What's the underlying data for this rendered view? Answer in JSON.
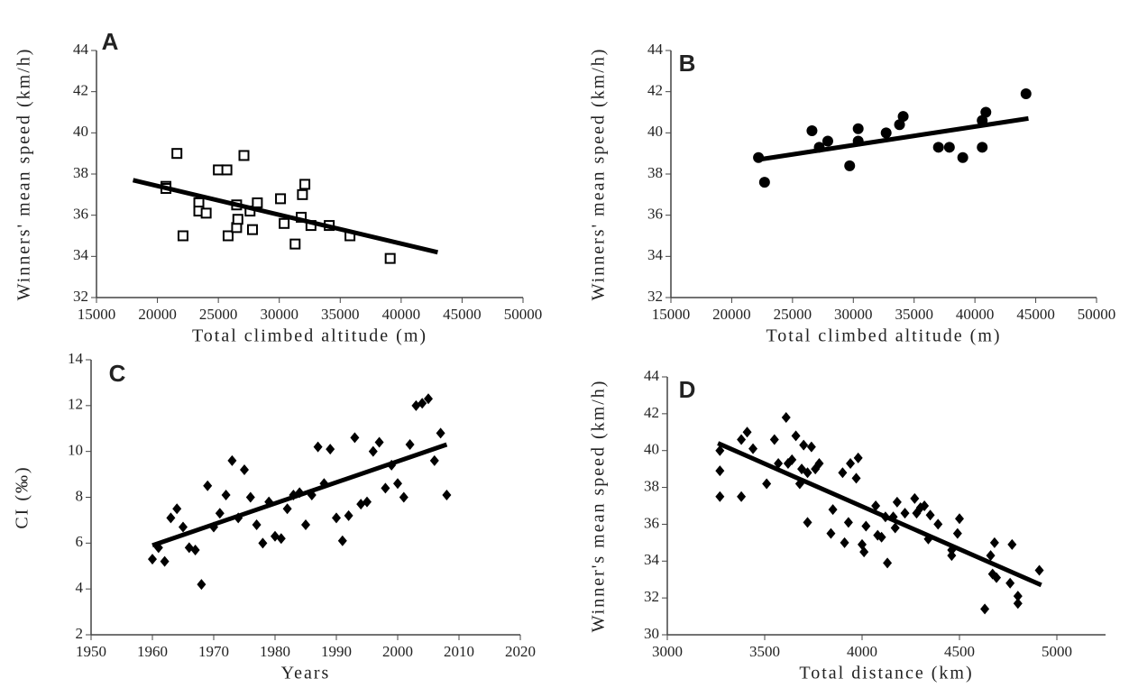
{
  "chart_data": [
    {
      "type": "scatter",
      "title": "A",
      "x_label": "Total climbed altitude (m)",
      "y_label": "Winners' mean speed (km/h)",
      "marker": "square-open",
      "color": "#000000",
      "xlim": [
        15000,
        50000
      ],
      "xticks": [
        15000,
        20000,
        25000,
        30000,
        35000,
        40000,
        45000,
        50000
      ],
      "ylim": [
        32,
        44
      ],
      "yticks": [
        32,
        34,
        36,
        38,
        40,
        42,
        44
      ],
      "x": [
        20700,
        20700,
        21600,
        22100,
        23400,
        23400,
        24000,
        25000,
        25700,
        25800,
        26500,
        26500,
        26600,
        27100,
        27600,
        27800,
        28200,
        30100,
        30400,
        31300,
        31800,
        31900,
        32100,
        32600,
        34100,
        35800,
        39100
      ],
      "values": [
        37.4,
        37.3,
        39.0,
        35.0,
        36.6,
        36.2,
        36.1,
        38.2,
        38.2,
        35.0,
        36.5,
        35.4,
        35.8,
        38.9,
        36.2,
        35.3,
        36.6,
        36.8,
        35.6,
        34.6,
        35.9,
        37.0,
        37.5,
        35.5,
        35.5,
        35.0,
        33.9
      ],
      "trend": {
        "x": [
          18000,
          43000
        ],
        "values": [
          37.7,
          34.2
        ]
      }
    },
    {
      "type": "scatter",
      "title": "B",
      "x_label": "Total climbed altitude (m)",
      "y_label": "Winners' mean speed (km/h)",
      "marker": "circle",
      "color": "#000000",
      "xlim": [
        15000,
        50000
      ],
      "xticks": [
        15000,
        20000,
        25000,
        30000,
        35000,
        40000,
        45000,
        50000
      ],
      "ylim": [
        32,
        44
      ],
      "yticks": [
        32,
        34,
        36,
        38,
        40,
        42,
        44
      ],
      "x": [
        22200,
        22700,
        26600,
        27200,
        27900,
        29700,
        30400,
        30400,
        32700,
        33800,
        34100,
        37000,
        37900,
        39000,
        40600,
        40600,
        40900,
        44200
      ],
      "values": [
        38.8,
        37.6,
        40.1,
        39.3,
        39.6,
        38.4,
        39.6,
        40.2,
        40.0,
        40.4,
        40.8,
        39.3,
        39.3,
        38.8,
        39.3,
        40.6,
        41.0,
        41.9
      ],
      "trend": {
        "x": [
          22200,
          44400
        ],
        "values": [
          38.7,
          40.7
        ]
      }
    },
    {
      "type": "scatter",
      "title": "C",
      "x_label": "Years",
      "y_label": "CI (‰)",
      "marker": "diamond",
      "color": "#000000",
      "xlim": [
        1950,
        2020
      ],
      "xticks": [
        1950,
        1960,
        1970,
        1980,
        1990,
        2000,
        2010,
        2020
      ],
      "ylim": [
        2,
        14
      ],
      "yticks": [
        2,
        4,
        6,
        8,
        10,
        12,
        14
      ],
      "x": [
        1960,
        1961,
        1962,
        1963,
        1964,
        1965,
        1966,
        1967,
        1968,
        1969,
        1970,
        1971,
        1972,
        1973,
        1974,
        1975,
        1976,
        1977,
        1978,
        1979,
        1980,
        1981,
        1982,
        1983,
        1984,
        1985,
        1986,
        1987,
        1988,
        1989,
        1990,
        1991,
        1992,
        1993,
        1994,
        1995,
        1996,
        1997,
        1998,
        1999,
        2000,
        2001,
        2002,
        2003,
        2004,
        2005,
        2006,
        2007,
        2008
      ],
      "values": [
        5.3,
        5.8,
        5.2,
        7.1,
        7.5,
        6.7,
        5.8,
        5.7,
        4.2,
        8.5,
        6.7,
        7.3,
        8.1,
        9.6,
        7.1,
        9.2,
        8.0,
        6.8,
        6.0,
        7.8,
        6.3,
        6.2,
        7.5,
        8.1,
        8.2,
        6.8,
        8.1,
        10.2,
        8.6,
        10.1,
        7.1,
        6.1,
        7.2,
        10.6,
        7.7,
        7.8,
        10.0,
        10.4,
        8.4,
        9.4,
        8.6,
        8.0,
        10.3,
        12.0,
        12.1,
        12.3,
        9.6,
        10.8,
        8.1
      ],
      "trend": {
        "x": [
          1960,
          2008
        ],
        "values": [
          5.9,
          10.3
        ]
      }
    },
    {
      "type": "scatter",
      "title": "D",
      "x_label": "Total distance (km)",
      "y_label": "Winner's mean speed (km/h)",
      "marker": "diamond",
      "color": "#000000",
      "xlim": [
        3000,
        5250
      ],
      "xticks": [
        3000,
        3500,
        4000,
        4500,
        5000
      ],
      "ylim": [
        30,
        44
      ],
      "yticks": [
        30,
        32,
        34,
        36,
        38,
        40,
        42,
        44
      ],
      "x": [
        3270,
        3270,
        3270,
        3380,
        3380,
        3410,
        3440,
        3510,
        3550,
        3570,
        3610,
        3620,
        3640,
        3660,
        3680,
        3690,
        3700,
        3720,
        3720,
        3740,
        3760,
        3780,
        3840,
        3850,
        3900,
        3910,
        3930,
        3940,
        3970,
        3980,
        4000,
        4010,
        4020,
        4070,
        4080,
        4100,
        4120,
        4130,
        4160,
        4170,
        4180,
        4220,
        4270,
        4280,
        4300,
        4320,
        4340,
        4350,
        4390,
        4460,
        4460,
        4490,
        4500,
        4630,
        4660,
        4670,
        4680,
        4690,
        4760,
        4770,
        4800,
        4800,
        4910
      ],
      "values": [
        40.0,
        38.9,
        37.5,
        40.6,
        37.5,
        41.0,
        40.1,
        38.2,
        40.6,
        39.3,
        41.8,
        39.3,
        39.5,
        40.8,
        38.2,
        39.0,
        40.3,
        36.1,
        38.8,
        40.2,
        39.0,
        39.3,
        35.5,
        36.8,
        38.8,
        35.0,
        36.1,
        39.3,
        38.5,
        39.6,
        34.9,
        34.5,
        35.9,
        37.0,
        35.4,
        35.3,
        36.4,
        33.9,
        36.4,
        35.8,
        37.2,
        36.6,
        37.4,
        36.6,
        36.9,
        37.0,
        35.2,
        36.5,
        36.0,
        34.6,
        34.3,
        35.5,
        36.3,
        31.4,
        34.3,
        33.3,
        35.0,
        33.1,
        32.8,
        34.9,
        32.1,
        31.7,
        33.5
      ],
      "trend": {
        "x": [
          3260,
          4920
        ],
        "values": [
          40.4,
          32.7
        ]
      }
    }
  ]
}
